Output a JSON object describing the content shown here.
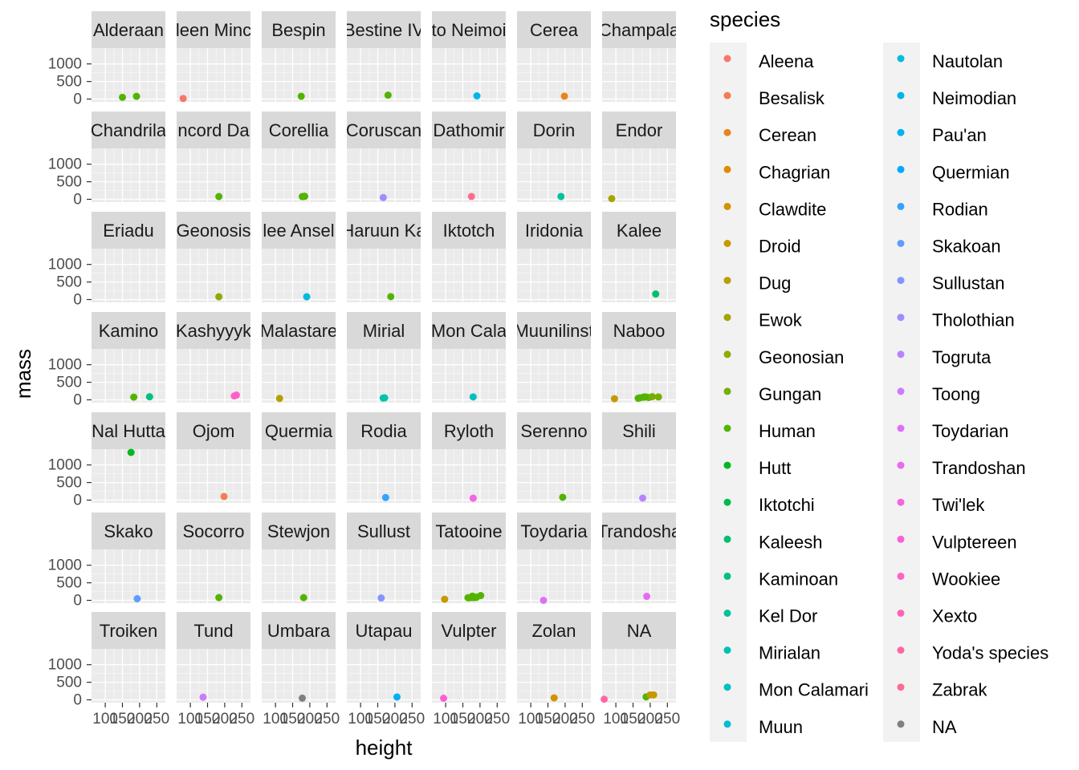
{
  "chart_data": {
    "type": "scatter",
    "faceted": true,
    "facet_variable": "homeworld",
    "xlabel": "height",
    "ylabel": "mass",
    "x_ticks": [
      100,
      150,
      200,
      250
    ],
    "x_tick_labels": [
      "100",
      "150",
      "200",
      "250"
    ],
    "y_ticks": [
      0,
      500,
      1000
    ],
    "y_tick_labels": [
      "0",
      "500",
      "1000"
    ],
    "xlim": [
      60,
      275
    ],
    "ylim": [
      -80,
      1450
    ],
    "grid": true,
    "legend_position": "right",
    "legend_title": "species",
    "species": [
      {
        "name": "Aleena",
        "color": "#F8766D"
      },
      {
        "name": "Besalisk",
        "color": "#F17E50"
      },
      {
        "name": "Cerean",
        "color": "#E8851F"
      },
      {
        "name": "Chagrian",
        "color": "#DE8C00"
      },
      {
        "name": "Clawdite",
        "color": "#D29300"
      },
      {
        "name": "Droid",
        "color": "#C49A00"
      },
      {
        "name": "Dug",
        "color": "#B5A000"
      },
      {
        "name": "Ewok",
        "color": "#A3A500"
      },
      {
        "name": "Geonosian",
        "color": "#8EAB00"
      },
      {
        "name": "Gungan",
        "color": "#75AF00"
      },
      {
        "name": "Human",
        "color": "#53B400"
      },
      {
        "name": "Hutt",
        "color": "#00B81F"
      },
      {
        "name": "Iktotchi",
        "color": "#00BB4E"
      },
      {
        "name": "Kaleesh",
        "color": "#00BE6C"
      },
      {
        "name": "Kaminoan",
        "color": "#00C085"
      },
      {
        "name": "Kel Dor",
        "color": "#00C19B"
      },
      {
        "name": "Mirialan",
        "color": "#00C1AF"
      },
      {
        "name": "Mon Calamari",
        "color": "#00C0C2"
      },
      {
        "name": "Muun",
        "color": "#00BDD2"
      },
      {
        "name": "Nautolan",
        "color": "#00BAE0"
      },
      {
        "name": "Neimodian",
        "color": "#00B5EC"
      },
      {
        "name": "Pau'an",
        "color": "#00B0F6"
      },
      {
        "name": "Quermian",
        "color": "#00A9FF"
      },
      {
        "name": "Rodian",
        "color": "#35A2FF"
      },
      {
        "name": "Skakoan",
        "color": "#619CFF"
      },
      {
        "name": "Sullustan",
        "color": "#8494FF"
      },
      {
        "name": "Tholothian",
        "color": "#A08CFF"
      },
      {
        "name": "Togruta",
        "color": "#B983FF"
      },
      {
        "name": "Toong",
        "color": "#CC7BFF"
      },
      {
        "name": "Toydarian",
        "color": "#DC71FA"
      },
      {
        "name": "Trandoshan",
        "color": "#E96AF0"
      },
      {
        "name": "Twi'lek",
        "color": "#F464E4"
      },
      {
        "name": "Vulptereen",
        "color": "#FB61D7"
      },
      {
        "name": "Wookiee",
        "color": "#FF61C8"
      },
      {
        "name": "Xexto",
        "color": "#FF63B6"
      },
      {
        "name": "Yoda's species",
        "color": "#FF67A4"
      },
      {
        "name": "Zabrak",
        "color": "#FF6C91"
      },
      {
        "name": "NA",
        "color": "#808080"
      }
    ],
    "panels": [
      {
        "label": "Alderaan",
        "points": [
          [
            150,
            49,
            "Human"
          ],
          [
            191,
            78,
            "Human"
          ]
        ]
      },
      {
        "label": "leen Minc",
        "points": [
          [
            79,
            15,
            "Aleena"
          ]
        ]
      },
      {
        "label": "Bespin",
        "points": [
          [
            175,
            79,
            "Human"
          ]
        ]
      },
      {
        "label": "Bestine IV",
        "points": [
          [
            180,
            110,
            "Human"
          ]
        ]
      },
      {
        "label": "to Neimoi",
        "points": [
          [
            191,
            90,
            "Neimodian"
          ]
        ]
      },
      {
        "label": "Cerea",
        "points": [
          [
            198,
            82,
            "Cerean"
          ]
        ]
      },
      {
        "label": "Champala",
        "points": []
      },
      {
        "label": "Chandrila",
        "points": []
      },
      {
        "label": "ncord Da",
        "points": [
          [
            183,
            79,
            "Human"
          ]
        ]
      },
      {
        "label": "Corellia",
        "points": [
          [
            180,
            80,
            "Human"
          ],
          [
            185,
            85,
            "Human"
          ],
          [
            178,
            77,
            "Human"
          ]
        ]
      },
      {
        "label": "Coruscan",
        "points": [
          [
            166,
            50,
            "Tholothian"
          ]
        ]
      },
      {
        "label": "Dathomir",
        "points": [
          [
            175,
            80,
            "Zabrak"
          ]
        ]
      },
      {
        "label": "Dorin",
        "points": [
          [
            188,
            80,
            "Kel Dor"
          ]
        ]
      },
      {
        "label": "Endor",
        "points": [
          [
            88,
            20,
            "Ewok"
          ]
        ]
      },
      {
        "label": "Eriadu",
        "points": []
      },
      {
        "label": "Geonosis",
        "points": [
          [
            183,
            80,
            "Geonosian"
          ]
        ]
      },
      {
        "label": "lee Ansel",
        "points": [
          [
            191,
            80,
            "Nautolan"
          ]
        ]
      },
      {
        "label": "Haruun Ka",
        "points": [
          [
            188,
            84,
            "Human"
          ]
        ]
      },
      {
        "label": "Iktotch",
        "points": []
      },
      {
        "label": "Iridonia",
        "points": []
      },
      {
        "label": "Kalee",
        "points": [
          [
            216,
            159,
            "Kaleesh"
          ]
        ]
      },
      {
        "label": "Kamino",
        "points": [
          [
            183,
            78,
            "Human"
          ],
          [
            229,
            88,
            "Kaminoan"
          ]
        ]
      },
      {
        "label": "Kashyyyk",
        "points": [
          [
            228,
            112,
            "Wookiee"
          ],
          [
            234,
            136,
            "Wookiee"
          ]
        ]
      },
      {
        "label": "Malastare",
        "points": [
          [
            112,
            40,
            "Dug"
          ]
        ]
      },
      {
        "label": "Mirial",
        "points": [
          [
            170,
            56,
            "Mirialan"
          ],
          [
            166,
            50,
            "Mirialan"
          ]
        ]
      },
      {
        "label": "Mon Cala",
        "points": [
          [
            180,
            83,
            "Mon Calamari"
          ]
        ]
      },
      {
        "label": "Muunilinst",
        "points": []
      },
      {
        "label": "Naboo",
        "points": [
          [
            96,
            32,
            "Droid"
          ],
          [
            183,
            84,
            "Human"
          ],
          [
            196,
            66,
            "Gungan"
          ],
          [
            224,
            82,
            "Gungan"
          ],
          [
            170,
            56,
            "Human"
          ],
          [
            188,
            80,
            "Human"
          ],
          [
            180,
            75,
            "Human"
          ],
          [
            206,
            90,
            "Gungan"
          ],
          [
            165,
            45,
            "Human"
          ]
        ]
      },
      {
        "label": "Nal Hutta",
        "points": [
          [
            175,
            1358,
            "Hutt"
          ]
        ]
      },
      {
        "label": "Ojom",
        "points": [
          [
            198,
            102,
            "Besalisk"
          ]
        ]
      },
      {
        "label": "Quermia",
        "points": []
      },
      {
        "label": "Rodia",
        "points": [
          [
            173,
            74,
            "Rodian"
          ]
        ]
      },
      {
        "label": "Ryloth",
        "points": [
          [
            180,
            55,
            "Twi'lek"
          ]
        ]
      },
      {
        "label": "Serenno",
        "points": [
          [
            193,
            80,
            "Human"
          ]
        ]
      },
      {
        "label": "Shili",
        "points": [
          [
            178,
            57,
            "Togruta"
          ]
        ]
      },
      {
        "label": "Skako",
        "points": [
          [
            193,
            48,
            "Skakoan"
          ]
        ]
      },
      {
        "label": "Socorro",
        "points": [
          [
            183,
            79,
            "Human"
          ]
        ]
      },
      {
        "label": "Stewjon",
        "points": [
          [
            182,
            77,
            "Human"
          ]
        ]
      },
      {
        "label": "Sullust",
        "points": [
          [
            160,
            68,
            "Sullustan"
          ]
        ]
      },
      {
        "label": "Tatooine",
        "points": [
          [
            97,
            32,
            "Droid"
          ],
          [
            167,
            75,
            "Droid"
          ],
          [
            172,
            77,
            "Human"
          ],
          [
            202,
            136,
            "Human"
          ],
          [
            178,
            120,
            "Human"
          ],
          [
            165,
            75,
            "Human"
          ],
          [
            183,
            84,
            "Human"
          ],
          [
            188,
            84,
            "Human"
          ],
          [
            180,
            80,
            "Human"
          ],
          [
            190,
            90,
            "Human"
          ]
        ]
      },
      {
        "label": "Toydaria",
        "points": [
          [
            137,
            0,
            "Toydarian"
          ]
        ]
      },
      {
        "label": "Trandosha",
        "points": [
          [
            190,
            113,
            "Trandoshan"
          ]
        ]
      },
      {
        "label": "Troiken",
        "points": []
      },
      {
        "label": "Tund",
        "points": [
          [
            137,
            75,
            "Toong"
          ]
        ]
      },
      {
        "label": "Umbara",
        "points": [
          [
            178,
            48,
            "NA"
          ]
        ]
      },
      {
        "label": "Utapau",
        "points": [
          [
            206,
            80,
            "Pau'an"
          ]
        ]
      },
      {
        "label": "Vulpter",
        "points": [
          [
            94,
            45,
            "Vulptereen"
          ]
        ]
      },
      {
        "label": "Zolan",
        "points": [
          [
            168,
            55,
            "Clawdite"
          ]
        ]
      },
      {
        "label": "NA",
        "points": [
          [
            66,
            17,
            "Yoda's species"
          ],
          [
            188,
            84,
            "Human"
          ],
          [
            200,
            140,
            "Droid"
          ],
          [
            210,
            140,
            "Droid"
          ]
        ]
      }
    ]
  }
}
